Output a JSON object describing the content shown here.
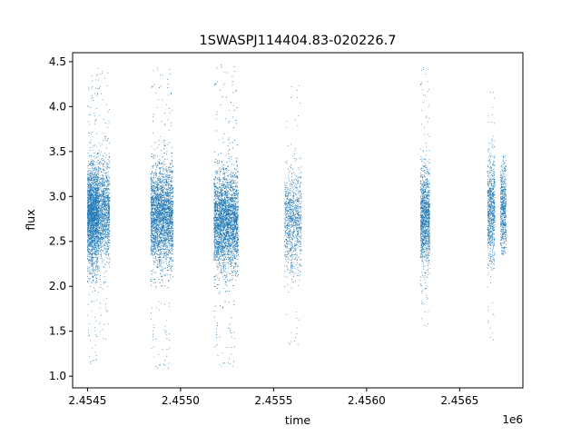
{
  "chart_data": {
    "type": "scatter",
    "title": "1SWASPJ114404.83-020226.7",
    "xlabel": "time",
    "ylabel": "flux",
    "x_offset_label": "1e6",
    "xlim": [
      2454420,
      2456840
    ],
    "ylim": [
      0.87,
      4.6
    ],
    "x_ticks": [
      2454500,
      2455000,
      2455500,
      2456000,
      2456500
    ],
    "x_tick_labels": [
      "2.4545",
      "2.4550",
      "2.4555",
      "2.4560",
      "2.4565"
    ],
    "y_ticks": [
      1.0,
      1.5,
      2.0,
      2.5,
      3.0,
      3.5,
      4.0,
      4.5
    ],
    "y_tick_labels": [
      "1.0",
      "1.5",
      "2.0",
      "2.5",
      "3.0",
      "3.5",
      "4.0",
      "4.5"
    ],
    "grid": false,
    "legend": "none",
    "marker_color": "#1f77b4",
    "clusters": [
      {
        "x_range": [
          2454500,
          2454560
        ],
        "flux_center": 2.78,
        "flux_min": 1.1,
        "flux_max": 4.43,
        "density": 2600
      },
      {
        "x_range": [
          2454560,
          2454620
        ],
        "flux_center": 2.82,
        "flux_min": 1.35,
        "flux_max": 4.4,
        "density": 1200
      },
      {
        "x_range": [
          2454840,
          2454960
        ],
        "flux_center": 2.78,
        "flux_min": 1.05,
        "flux_max": 4.44,
        "density": 3500
      },
      {
        "x_range": [
          2455180,
          2455310
        ],
        "flux_center": 2.72,
        "flux_min": 1.07,
        "flux_max": 4.47,
        "density": 4200
      },
      {
        "x_range": [
          2455560,
          2455650
        ],
        "flux_center": 2.72,
        "flux_min": 1.32,
        "flux_max": 4.3,
        "density": 1000
      },
      {
        "x_range": [
          2456290,
          2456340
        ],
        "flux_center": 2.75,
        "flux_min": 1.5,
        "flux_max": 4.44,
        "density": 1300
      },
      {
        "x_range": [
          2456650,
          2456690
        ],
        "flux_center": 2.85,
        "flux_min": 1.37,
        "flux_max": 4.36,
        "density": 800
      },
      {
        "x_range": [
          2456720,
          2456750
        ],
        "flux_center": 2.85,
        "flux_min": 2.35,
        "flux_max": 3.48,
        "density": 600
      }
    ]
  }
}
